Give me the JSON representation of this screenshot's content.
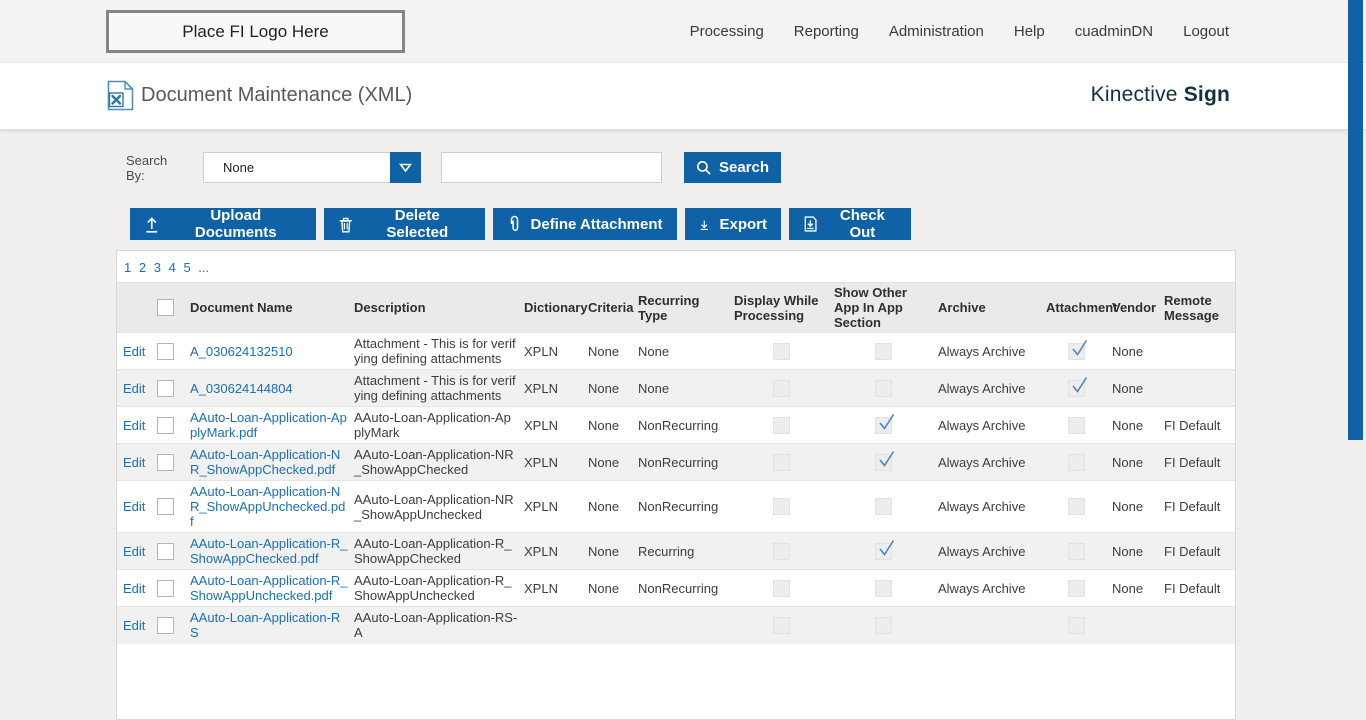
{
  "header": {
    "logo_placeholder": "Place FI Logo Here",
    "nav": [
      "Processing",
      "Reporting",
      "Administration",
      "Help",
      "cuadminDN",
      "Logout"
    ]
  },
  "title_bar": {
    "title": "Document Maintenance (XML)",
    "brand_regular": "Kinective",
    "brand_bold": "Sign"
  },
  "search": {
    "label": "Search By:",
    "dropdown_value": "None",
    "input_value": "",
    "button_label": "Search"
  },
  "toolbar": {
    "upload": "Upload Documents",
    "delete": "Delete Selected",
    "define_attachment": "Define Attachment",
    "export": "Export",
    "check_out": "Check Out"
  },
  "pagination": {
    "pages": [
      "1",
      "2",
      "3",
      "4",
      "5",
      "..."
    ]
  },
  "table": {
    "edit_label": "Edit",
    "columns": [
      "Document Name",
      "Description",
      "Dictionary",
      "Criteria",
      "Recurring Type",
      "Display While Processing",
      "Show Other App In App Section",
      "Archive",
      "Attachment",
      "Vendor",
      "Remote Message"
    ],
    "rows": [
      {
        "document_name": "A_030624132510",
        "description": "Attachment - This is for verifying defining attachments",
        "dictionary": "XPLN",
        "criteria": "None",
        "recurring_type": "None",
        "display_while_processing": false,
        "show_other_app": false,
        "archive": "Always Archive",
        "attachment": true,
        "vendor": "None",
        "remote_message": ""
      },
      {
        "document_name": "A_030624144804",
        "description": "Attachment - This is for verifying defining attachments",
        "dictionary": "XPLN",
        "criteria": "None",
        "recurring_type": "None",
        "display_while_processing": false,
        "show_other_app": false,
        "archive": "Always Archive",
        "attachment": true,
        "vendor": "None",
        "remote_message": ""
      },
      {
        "document_name": "AAuto-Loan-Application-ApplyMark.pdf",
        "description": "AAuto-Loan-Application-ApplyMark",
        "dictionary": "XPLN",
        "criteria": "None",
        "recurring_type": "NonRecurring",
        "display_while_processing": false,
        "show_other_app": true,
        "archive": "Always Archive",
        "attachment": false,
        "vendor": "None",
        "remote_message": "FI Default"
      },
      {
        "document_name": "AAuto-Loan-Application-NR_ShowAppChecked.pdf",
        "description": "AAuto-Loan-Application-NR_ShowAppChecked",
        "dictionary": "XPLN",
        "criteria": "None",
        "recurring_type": "NonRecurring",
        "display_while_processing": false,
        "show_other_app": true,
        "archive": "Always Archive",
        "attachment": false,
        "vendor": "None",
        "remote_message": "FI Default"
      },
      {
        "document_name": "AAuto-Loan-Application-NR_ShowAppUnchecked.pdf",
        "description": "AAuto-Loan-Application-NR_ShowAppUnchecked",
        "dictionary": "XPLN",
        "criteria": "None",
        "recurring_type": "NonRecurring",
        "display_while_processing": false,
        "show_other_app": false,
        "archive": "Always Archive",
        "attachment": false,
        "vendor": "None",
        "remote_message": "FI Default"
      },
      {
        "document_name": "AAuto-Loan-Application-R_ShowAppChecked.pdf",
        "description": "AAuto-Loan-Application-R_ShowAppChecked",
        "dictionary": "XPLN",
        "criteria": "None",
        "recurring_type": "Recurring",
        "display_while_processing": false,
        "show_other_app": true,
        "archive": "Always Archive",
        "attachment": false,
        "vendor": "None",
        "remote_message": "FI Default"
      },
      {
        "document_name": "AAuto-Loan-Application-R_ShowAppUnchecked.pdf",
        "description": "AAuto-Loan-Application-R_ShowAppUnchecked",
        "dictionary": "XPLN",
        "criteria": "None",
        "recurring_type": "NonRecurring",
        "display_while_processing": false,
        "show_other_app": false,
        "archive": "Always Archive",
        "attachment": false,
        "vendor": "None",
        "remote_message": "FI Default"
      },
      {
        "document_name": "AAuto-Loan-Application-RS",
        "description": "AAuto-Loan-Application-RS-A",
        "dictionary": "",
        "criteria": "",
        "recurring_type": "",
        "display_while_processing": false,
        "show_other_app": false,
        "archive": "",
        "attachment": false,
        "vendor": "",
        "remote_message": ""
      }
    ]
  },
  "colors": {
    "accent_blue": "#0f62a6",
    "link_blue": "#1a6fb5",
    "check_blue": "#4d87bd",
    "brand_teal": "#13303d"
  }
}
